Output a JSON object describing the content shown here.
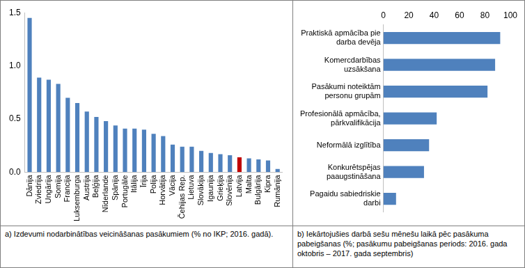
{
  "chart_data": [
    {
      "type": "bar",
      "title": "a) Izdevumi nodarbinātības veicināšanas pasākumiem (% no IKP; 2016. gadā).",
      "categories": [
        "Dānija",
        "Zviedrija",
        "Ungārija",
        "Somija",
        "Francija",
        "Luksemburga",
        "Austrija",
        "Beļģija",
        "Nīderlande",
        "Spānija",
        "Portugāle",
        "Itālija",
        "Īrija",
        "Polija",
        "Horvātija",
        "Vācija",
        "Čehijas Rep.",
        "Lietuva",
        "Slovākija",
        "Igaunija",
        "Grieķija",
        "Slovēnija",
        "Latvija",
        "Malta",
        "Bulgārija",
        "Kipra",
        "Rumānija"
      ],
      "values": [
        1.45,
        0.89,
        0.87,
        0.83,
        0.7,
        0.65,
        0.57,
        0.52,
        0.48,
        0.44,
        0.41,
        0.41,
        0.4,
        0.36,
        0.34,
        0.26,
        0.24,
        0.24,
        0.2,
        0.18,
        0.17,
        0.16,
        0.14,
        0.13,
        0.12,
        0.11,
        0.03
      ],
      "colors": [
        "#4f81bd",
        "#4f81bd",
        "#4f81bd",
        "#4f81bd",
        "#4f81bd",
        "#4f81bd",
        "#4f81bd",
        "#4f81bd",
        "#4f81bd",
        "#4f81bd",
        "#4f81bd",
        "#4f81bd",
        "#4f81bd",
        "#4f81bd",
        "#4f81bd",
        "#4f81bd",
        "#4f81bd",
        "#4f81bd",
        "#4f81bd",
        "#4f81bd",
        "#4f81bd",
        "#4f81bd",
        "#c00000",
        "#4f81bd",
        "#4f81bd",
        "#4f81bd",
        "#4f81bd"
      ],
      "ylim": [
        0,
        1.5
      ],
      "yticks": [
        {
          "value": 0,
          "label": "0.0"
        },
        {
          "value": 0.5,
          "label": "0.5"
        },
        {
          "value": 1,
          "label": "1.0"
        },
        {
          "value": 1.5,
          "label": "1.5"
        }
      ],
      "grid": false
    },
    {
      "type": "bar",
      "orientation": "horizontal",
      "title": "b) Iekārtojušies darbā sešu mēnešu laikā pēc pasākuma pabeigšanas (%; pasākumu pabeigšanas periods: 2016. gada oktobris – 2017. gada septembris)",
      "categories": [
        [
          "Praktiskā apmācība pie",
          "darba devēja"
        ],
        [
          "Komercdarbības",
          "uzsākšana"
        ],
        [
          "Pasākumi noteiktām",
          "personu grupām"
        ],
        [
          "Profesionālā apmācība,",
          "pārkvalifikācija"
        ],
        [
          "Neformālā izglītība"
        ],
        [
          "Konkurētspējas",
          "paaugstināšana"
        ],
        [
          "Pagaidu sabiedriskie",
          "darbi"
        ]
      ],
      "values": [
        92,
        88,
        82,
        42,
        36,
        32,
        10
      ],
      "color": "#4f81bd",
      "xlim": [
        0,
        100
      ],
      "xticks": [
        0,
        20,
        40,
        60,
        80,
        100
      ],
      "grid": false
    }
  ]
}
